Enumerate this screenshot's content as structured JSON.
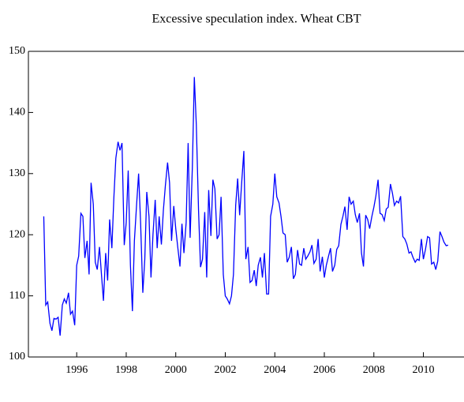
{
  "chart_data": {
    "type": "line",
    "title": "Excessive speculation index. Wheat CBT",
    "color": "#0000ff",
    "xlim": [
      1994.05,
      2011.64
    ],
    "xticks": [
      1996,
      1998,
      2000,
      2002,
      2004,
      2006,
      2008,
      2010
    ],
    "ylim": [
      100,
      150
    ],
    "yticks": [
      100,
      110,
      120,
      130,
      140,
      150
    ],
    "x": [
      1994.67,
      1994.75,
      1994.83,
      1994.92,
      1995.0,
      1995.08,
      1995.17,
      1995.25,
      1995.33,
      1995.42,
      1995.5,
      1995.58,
      1995.67,
      1995.75,
      1995.83,
      1995.92,
      1996.0,
      1996.08,
      1996.17,
      1996.25,
      1996.33,
      1996.42,
      1996.5,
      1996.58,
      1996.67,
      1996.75,
      1996.83,
      1996.92,
      1997.0,
      1997.08,
      1997.17,
      1997.25,
      1997.33,
      1997.42,
      1997.5,
      1997.58,
      1997.67,
      1997.75,
      1997.83,
      1997.92,
      1998.0,
      1998.08,
      1998.17,
      1998.25,
      1998.33,
      1998.42,
      1998.5,
      1998.58,
      1998.67,
      1998.75,
      1998.83,
      1998.92,
      1999.0,
      1999.08,
      1999.17,
      1999.25,
      1999.33,
      1999.42,
      1999.5,
      1999.58,
      1999.67,
      1999.75,
      1999.83,
      1999.92,
      2000.0,
      2000.08,
      2000.17,
      2000.25,
      2000.33,
      2000.42,
      2000.5,
      2000.58,
      2000.67,
      2000.75,
      2000.83,
      2000.92,
      2001.0,
      2001.08,
      2001.17,
      2001.25,
      2001.33,
      2001.42,
      2001.5,
      2001.58,
      2001.67,
      2001.75,
      2001.83,
      2001.92,
      2002.0,
      2002.08,
      2002.17,
      2002.25,
      2002.33,
      2002.42,
      2002.5,
      2002.58,
      2002.67,
      2002.75,
      2002.83,
      2002.92,
      2003.0,
      2003.08,
      2003.17,
      2003.25,
      2003.33,
      2003.42,
      2003.5,
      2003.58,
      2003.67,
      2003.75,
      2003.83,
      2003.92,
      2004.0,
      2004.08,
      2004.17,
      2004.25,
      2004.33,
      2004.42,
      2004.5,
      2004.58,
      2004.67,
      2004.75,
      2004.83,
      2004.92,
      2005.0,
      2005.08,
      2005.17,
      2005.25,
      2005.33,
      2005.42,
      2005.5,
      2005.58,
      2005.67,
      2005.75,
      2005.83,
      2005.92,
      2006.0,
      2006.08,
      2006.17,
      2006.25,
      2006.33,
      2006.42,
      2006.5,
      2006.58,
      2006.67,
      2006.75,
      2006.83,
      2006.92,
      2007.0,
      2007.08,
      2007.17,
      2007.25,
      2007.33,
      2007.42,
      2007.5,
      2007.58,
      2007.67,
      2007.75,
      2007.83,
      2007.92,
      2008.0,
      2008.08,
      2008.17,
      2008.25,
      2008.33,
      2008.42,
      2008.5,
      2008.58,
      2008.67,
      2008.75,
      2008.83,
      2008.92,
      2009.0,
      2009.08,
      2009.17,
      2009.25,
      2009.33,
      2009.42,
      2009.5,
      2009.58,
      2009.67,
      2009.75,
      2009.83,
      2009.92,
      2010.0,
      2010.08,
      2010.17,
      2010.25,
      2010.33,
      2010.42,
      2010.5,
      2010.58,
      2010.67,
      2010.75,
      2010.83,
      2010.92,
      2011.0
    ],
    "values": [
      123,
      108.5,
      109,
      105.5,
      104.3,
      106.3,
      106.2,
      106.5,
      103.5,
      108.5,
      109.5,
      108.8,
      110.5,
      107,
      107.5,
      105.2,
      115,
      116.5,
      123.5,
      123,
      116.2,
      119,
      113.5,
      128.5,
      125,
      115.5,
      114.3,
      118,
      113.5,
      109.2,
      117,
      112.5,
      122.5,
      117.8,
      126,
      132.5,
      135.2,
      133.8,
      135,
      118.3,
      122,
      130.5,
      115,
      107.5,
      119,
      125,
      130,
      122,
      110.5,
      116,
      127,
      123,
      113,
      120,
      125.7,
      117.8,
      123,
      118.4,
      124,
      128,
      131.8,
      128.5,
      119,
      124.7,
      121,
      118,
      114.8,
      121.8,
      117,
      122,
      135,
      119.5,
      131,
      145.8,
      138,
      124,
      114.7,
      116,
      123.7,
      113,
      127.3,
      119.8,
      129,
      127.5,
      119.3,
      120,
      126.2,
      113.5,
      110,
      109.5,
      108.7,
      110,
      113.5,
      124.8,
      129.2,
      123.2,
      129,
      133.7,
      116,
      118,
      112.2,
      112.5,
      114.2,
      111.6,
      115,
      116.3,
      113,
      117,
      110.3,
      110.3,
      123,
      125,
      130,
      126.2,
      125.2,
      123,
      120.3,
      120,
      115.5,
      116.3,
      118,
      112.8,
      113.5,
      117.5,
      115.2,
      115,
      117.8,
      116,
      116.5,
      117.2,
      118.3,
      115.3,
      116,
      119.3,
      114,
      116.4,
      113,
      115,
      116.5,
      117.8,
      114,
      115,
      117.6,
      118.2,
      121.7,
      123,
      124.6,
      120.8,
      126.2,
      125,
      125.5,
      123.3,
      122,
      123.5,
      117,
      114.8,
      123.2,
      122.5,
      121,
      123,
      124.5,
      126.3,
      129,
      123.5,
      123.3,
      122.3,
      124.2,
      124.5,
      128.3,
      126.8,
      124.8,
      125.5,
      125.2,
      126.3,
      119.7,
      119.3,
      118.5,
      117,
      117.2,
      116.3,
      115.5,
      116,
      115.8,
      119.3,
      116,
      117.5,
      119.7,
      119.5,
      115.2,
      115.5,
      114.3,
      115.7,
      120.5,
      119.7,
      118.8,
      118.2,
      118.3
    ]
  }
}
